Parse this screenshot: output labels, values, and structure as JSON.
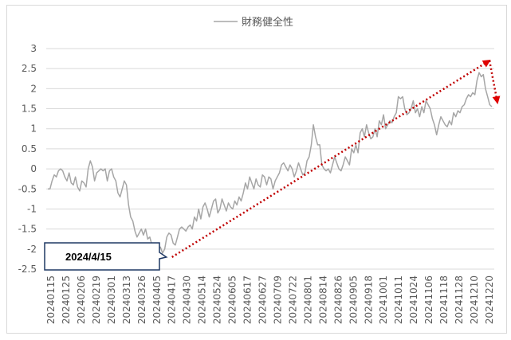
{
  "chart_data": {
    "type": "line",
    "title": "",
    "xlabel": "",
    "ylabel": "",
    "legend_position": "top-center",
    "grid": true,
    "ylim": [
      -2.5,
      3
    ],
    "yticks": [
      3,
      2.5,
      2,
      1.5,
      1,
      0.5,
      0,
      -0.5,
      -1,
      -1.5,
      -2,
      -2.5
    ],
    "ytick_labels": [
      "3",
      "2.5",
      "2",
      "1.5",
      "1",
      "0.5",
      "0",
      "-0.5",
      "-1",
      "-1.5",
      "-2",
      "-2.5"
    ],
    "xtick_labels": [
      "20240115",
      "20240125",
      "20240206",
      "20240219",
      "20240301",
      "20240313",
      "20240326",
      "20240405",
      "20240417",
      "20240430",
      "20240514",
      "20240524",
      "20240605",
      "20240617",
      "20240627",
      "20240709",
      "20240722",
      "20240801",
      "20240814",
      "20240826",
      "20240905",
      "20240918",
      "20241001",
      "20241011",
      "20241024",
      "20241106",
      "20241118",
      "20241128",
      "20241210",
      "20241220"
    ],
    "series": [
      {
        "name": "財務健全性",
        "color": "#a6a6a6",
        "values": [
          -0.5,
          -0.5,
          -0.3,
          -0.15,
          -0.2,
          -0.05,
          0.0,
          -0.05,
          -0.2,
          -0.3,
          -0.1,
          -0.35,
          -0.4,
          -0.2,
          -0.45,
          -0.55,
          -0.3,
          -0.35,
          -0.45,
          0.0,
          0.2,
          0.05,
          -0.3,
          -0.1,
          -0.05,
          0.0,
          -0.05,
          0.0,
          -0.3,
          -0.05,
          0.0,
          -0.2,
          -0.3,
          -0.6,
          -0.7,
          -0.5,
          -0.3,
          -0.4,
          -0.9,
          -1.2,
          -1.3,
          -1.55,
          -1.7,
          -1.6,
          -1.5,
          -1.65,
          -1.5,
          -1.75,
          -1.7,
          -1.9,
          -1.95,
          -1.9,
          -2.0,
          -1.95,
          -2.1,
          -2.0,
          -1.7,
          -1.6,
          -1.65,
          -1.85,
          -1.9,
          -1.7,
          -1.5,
          -1.45,
          -1.5,
          -1.55,
          -1.45,
          -1.4,
          -1.5,
          -1.2,
          -1.3,
          -1.0,
          -1.25,
          -0.95,
          -0.85,
          -1.0,
          -1.2,
          -1.0,
          -0.8,
          -0.75,
          -1.1,
          -1.0,
          -0.75,
          -0.9,
          -1.05,
          -0.85,
          -0.95,
          -1.0,
          -0.8,
          -0.9,
          -0.7,
          -0.8,
          -0.6,
          -0.35,
          -0.5,
          -0.2,
          -0.35,
          -0.5,
          -0.25,
          -0.4,
          -0.45,
          -0.15,
          -0.2,
          -0.4,
          -0.2,
          -0.25,
          -0.5,
          -0.3,
          -0.2,
          -0.1,
          0.1,
          0.15,
          0.05,
          -0.05,
          0.1,
          0.0,
          -0.2,
          -0.05,
          0.15,
          0.0,
          -0.15,
          -0.1,
          0.2,
          0.3,
          0.6,
          1.1,
          0.8,
          0.6,
          0.6,
          0.1,
          0.0,
          -0.05,
          0.0,
          -0.1,
          0.1,
          0.3,
          0.15,
          0.0,
          -0.05,
          0.1,
          0.3,
          0.2,
          0.1,
          0.5,
          0.4,
          0.6,
          0.4,
          0.9,
          1.0,
          0.8,
          1.1,
          0.9,
          0.75,
          0.8,
          1.0,
          0.8,
          1.2,
          1.1,
          1.35,
          1.0,
          1.1,
          1.2,
          1.15,
          1.3,
          1.4,
          1.8,
          1.75,
          1.8,
          1.5,
          1.35,
          1.4,
          1.5,
          1.7,
          1.4,
          1.5,
          1.3,
          1.55,
          1.4,
          1.7,
          1.6,
          1.5,
          1.25,
          1.1,
          0.85,
          1.1,
          1.3,
          1.2,
          1.1,
          1.05,
          1.2,
          1.1,
          1.4,
          1.3,
          1.45,
          1.4,
          1.55,
          1.6,
          1.75,
          1.85,
          1.8,
          1.9,
          1.85,
          2.2,
          2.4,
          2.3,
          2.35,
          2.0,
          1.8,
          1.6,
          1.55
        ]
      }
    ],
    "annotations": [
      {
        "type": "callout",
        "text": "2024/4/15",
        "points_to": "20240415"
      },
      {
        "type": "trend_arrow",
        "style": "dotted",
        "color": "#c00000",
        "from": {
          "x": "20240417",
          "y": -2.2
        },
        "to": {
          "x": "20241220",
          "y": 2.7
        }
      },
      {
        "type": "trend_arrow",
        "style": "dotted",
        "color": "#c00000",
        "from": {
          "x": "20241220",
          "y": 2.7
        },
        "to": {
          "x": "20241230",
          "y": 1.65
        }
      }
    ]
  }
}
